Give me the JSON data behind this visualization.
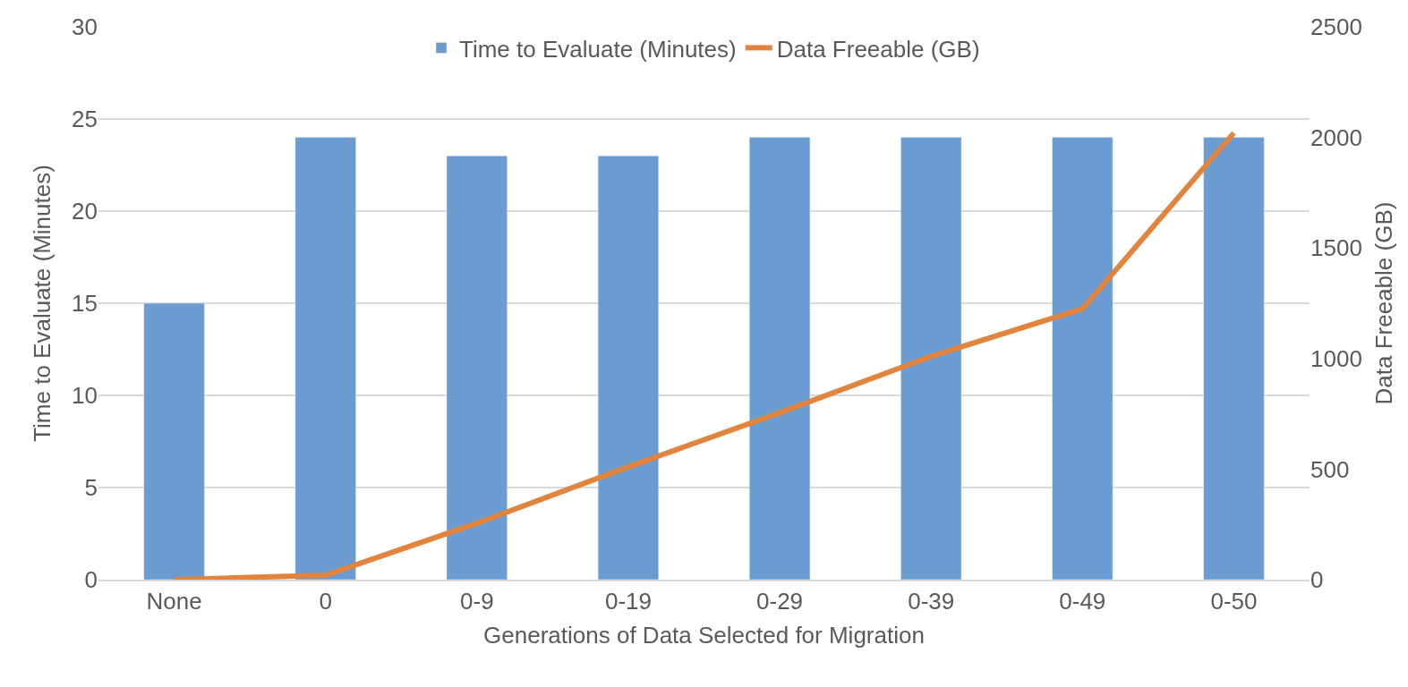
{
  "chart_data": {
    "type": "bar",
    "xlabel": "Generations of Data Selected for Migration",
    "ylabel": "Time to Evaluate (Minutes)",
    "y2label": "Data Freeable (GB)",
    "categories": [
      "None",
      "0",
      "0-9",
      "0-19",
      "0-29",
      "0-39",
      "0-49",
      "0-50"
    ],
    "series": [
      {
        "name": "Time to Evaluate (Minutes)",
        "color": "#6a9bd1",
        "values": [
          15,
          24,
          23,
          23,
          24,
          24,
          24,
          24
        ]
      },
      {
        "name": "Data Freeable (GB)",
        "type": "line",
        "axis": "y2",
        "color": "#e0843e",
        "values": [
          0,
          20,
          255,
          510,
          755,
          1010,
          1225,
          2020
        ]
      }
    ],
    "ylim": [
      0,
      30
    ],
    "yticks": [
      0,
      5,
      10,
      15,
      20,
      25,
      30
    ],
    "y2lim": [
      0,
      2500
    ],
    "y2ticks": [
      0,
      500,
      1000,
      1500,
      2000,
      2500
    ],
    "grid": "y",
    "legend": "top",
    "marker": "none",
    "line_style": "solid"
  }
}
